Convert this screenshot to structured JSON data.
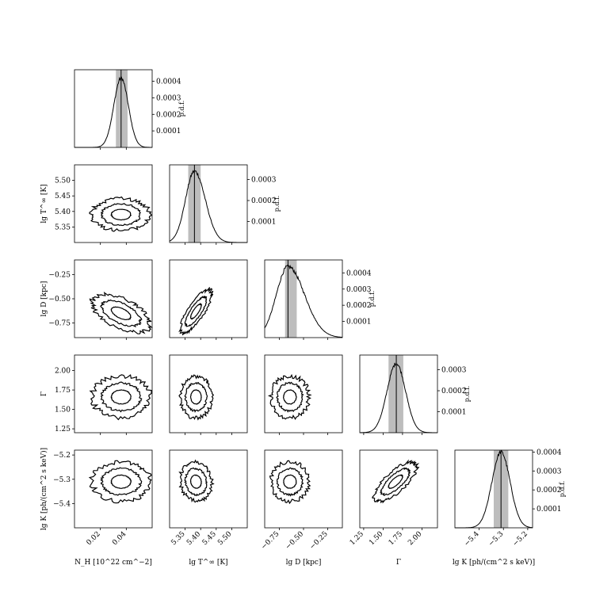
{
  "chart_data": {
    "type": "corner",
    "parameters": [
      {
        "id": "nh",
        "label": "N_H [10^22 cm^-2]",
        "range": [
          0.0,
          0.06
        ],
        "ticks": [
          {
            "v": 0.02,
            "t": "0.02"
          },
          {
            "v": 0.04,
            "t": "0.04"
          }
        ],
        "best": 0.036,
        "ci": [
          0.032,
          0.041
        ]
      },
      {
        "id": "lgt",
        "label": "lg T^∞ [K]",
        "range": [
          5.3,
          5.55
        ],
        "ticks": [
          {
            "v": 5.35,
            "t": "5.35"
          },
          {
            "v": 5.4,
            "t": "5.40"
          },
          {
            "v": 5.45,
            "t": "5.45"
          },
          {
            "v": 5.5,
            "t": "5.50"
          }
        ],
        "best": 5.38,
        "ci": [
          5.36,
          5.4
        ]
      },
      {
        "id": "lgd",
        "label": "lg D [kpc]",
        "range": [
          -0.9,
          -0.1
        ],
        "ticks": [
          {
            "v": -0.75,
            "t": "−0.75"
          },
          {
            "v": -0.5,
            "t": "−0.50"
          },
          {
            "v": -0.25,
            "t": "−0.25"
          }
        ],
        "best": -0.66,
        "ci": [
          -0.69,
          -0.57
        ]
      },
      {
        "id": "gamma",
        "label": "Γ",
        "range": [
          1.2,
          2.2
        ],
        "ticks": [
          {
            "v": 1.25,
            "t": "1.25"
          },
          {
            "v": 1.5,
            "t": "1.50"
          },
          {
            "v": 1.75,
            "t": "1.75"
          },
          {
            "v": 2.0,
            "t": "2.00"
          }
        ],
        "best": 1.67,
        "ci": [
          1.57,
          1.76
        ]
      },
      {
        "id": "lgk",
        "label": "lg K [ph/(cm² s keV)]",
        "range": [
          -5.5,
          -5.18
        ],
        "ticks": [
          {
            "v": -5.4,
            "t": "−5.4"
          },
          {
            "v": -5.3,
            "t": "−5.3"
          },
          {
            "v": -5.2,
            "t": "−5.2"
          }
        ],
        "best": -5.31,
        "ci": [
          -5.34,
          -5.28
        ]
      }
    ],
    "xlabels": [
      "N_H [10^22 cm^−2]",
      "lg T^∞ [K]",
      "lg D [kpc]",
      "Γ",
      "lg K [ph/(cm^2 s keV)]"
    ],
    "ylabels": {
      "lgt": "lg T^∞ [K]",
      "lgd": "lg D [kpc]",
      "gamma": "Γ",
      "lgk": "lg K [ph/(cm^2 s keV)]"
    },
    "pdf_label": "p.d.f.",
    "pdf_ticks": [
      [
        {
          "v": 0.0001,
          "t": "0.0001"
        },
        {
          "v": 0.0002,
          "t": "0.0002"
        },
        {
          "v": 0.0003,
          "t": "0.0003"
        },
        {
          "v": 0.0004,
          "t": "0.0004"
        }
      ],
      [
        {
          "v": 0.0001,
          "t": "0.0001"
        },
        {
          "v": 0.0002,
          "t": "0.0002"
        },
        {
          "v": 0.0003,
          "t": "0.0003"
        }
      ],
      [
        {
          "v": 0.0001,
          "t": "0.0001"
        },
        {
          "v": 0.0002,
          "t": "0.0002"
        },
        {
          "v": 0.0003,
          "t": "0.0003"
        },
        {
          "v": 0.0004,
          "t": "0.0004"
        }
      ],
      [
        {
          "v": 0.0001,
          "t": "0.0001"
        },
        {
          "v": 0.0002,
          "t": "0.0002"
        },
        {
          "v": 0.0003,
          "t": "0.0003"
        }
      ],
      [
        {
          "v": 0.0001,
          "t": "0.0001"
        },
        {
          "v": 0.0002,
          "t": "0.0002"
        },
        {
          "v": 0.0003,
          "t": "0.0003"
        },
        {
          "v": 0.0004,
          "t": "0.0004"
        }
      ]
    ],
    "pdf_max": [
      0.00047,
      0.00037,
      0.00048,
      0.00037,
      0.00041
    ],
    "pdf_peak": [
      0.00042,
      0.00034,
      0.00044,
      0.00033,
      0.0004
    ],
    "pdf_sigma_scale": [
      1.0,
      1.15,
      1.6,
      1.0,
      1.0
    ],
    "pdf_skew": [
      0.0,
      0.6,
      1.2,
      0.0,
      0.0
    ],
    "contour_levels": [
      1,
      2,
      3
    ],
    "pairs": [
      {
        "x": 0,
        "y": 1,
        "cx": 0.036,
        "cy": 5.39,
        "corr": 0.0,
        "sx": 0.0075,
        "sy": 0.017
      },
      {
        "x": 0,
        "y": 2,
        "cx": 0.036,
        "cy": -0.65,
        "corr": -0.55,
        "sx": 0.0075,
        "sy": 0.065
      },
      {
        "x": 1,
        "y": 2,
        "cx": 5.385,
        "cy": -0.63,
        "corr": 0.8,
        "sx": 0.017,
        "sy": 0.075
      },
      {
        "x": 0,
        "y": 3,
        "cx": 0.036,
        "cy": 1.66,
        "corr": 0.0,
        "sx": 0.0075,
        "sy": 0.09
      },
      {
        "x": 1,
        "y": 3,
        "cx": 5.385,
        "cy": 1.66,
        "corr": 0.0,
        "sx": 0.017,
        "sy": 0.09
      },
      {
        "x": 2,
        "y": 3,
        "cx": -0.64,
        "cy": 1.66,
        "corr": 0.0,
        "sx": 0.065,
        "sy": 0.09
      },
      {
        "x": 0,
        "y": 4,
        "cx": 0.036,
        "cy": -5.31,
        "corr": 0.0,
        "sx": 0.0075,
        "sy": 0.027
      },
      {
        "x": 1,
        "y": 4,
        "cx": 5.385,
        "cy": -5.31,
        "corr": -0.1,
        "sx": 0.017,
        "sy": 0.027
      },
      {
        "x": 2,
        "y": 4,
        "cx": -0.64,
        "cy": -5.31,
        "corr": 0.0,
        "sx": 0.065,
        "sy": 0.027
      },
      {
        "x": 3,
        "y": 4,
        "cx": 1.66,
        "cy": -5.31,
        "corr": 0.75,
        "sx": 0.09,
        "sy": 0.027
      }
    ],
    "colors": {
      "line": "#000000",
      "band": "#bdbdbd",
      "frame": "#000000"
    }
  }
}
